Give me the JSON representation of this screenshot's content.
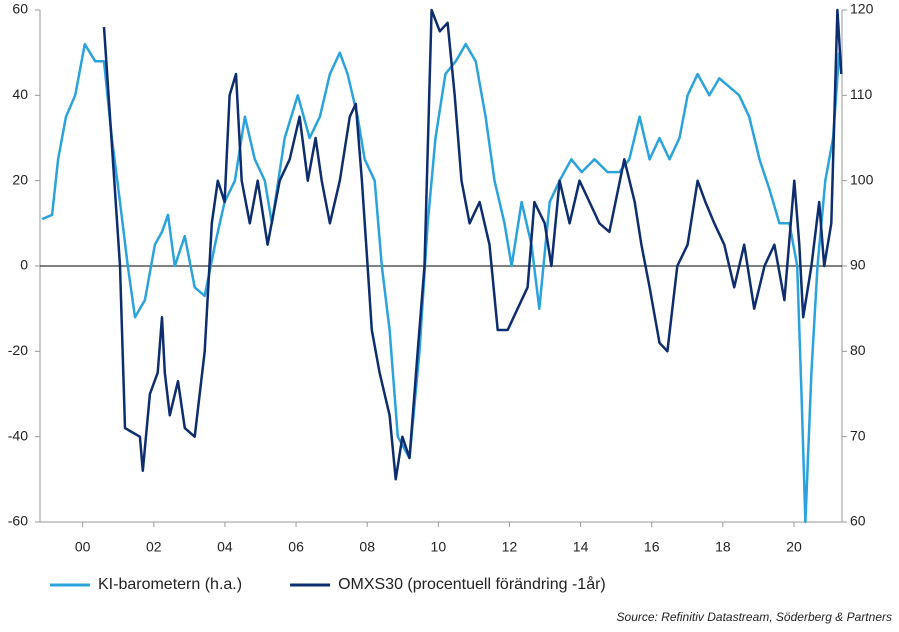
{
  "chart_data": {
    "type": "line",
    "source": "Source: Refinitiv Datastream, Söderberg & Partners",
    "xlim": [
      1998.8,
      2021.35
    ],
    "xticks": [
      {
        "value": 2000,
        "label": "00"
      },
      {
        "value": 2002,
        "label": "02"
      },
      {
        "value": 2004,
        "label": "04"
      },
      {
        "value": 2006,
        "label": "06"
      },
      {
        "value": 2008,
        "label": "08"
      },
      {
        "value": 2010,
        "label": "10"
      },
      {
        "value": 2012,
        "label": "12"
      },
      {
        "value": 2014,
        "label": "14"
      },
      {
        "value": 2016,
        "label": "16"
      },
      {
        "value": 2018,
        "label": "18"
      },
      {
        "value": 2020,
        "label": "20"
      }
    ],
    "ylim": [
      -60,
      60
    ],
    "yticks": [
      -60,
      -40,
      -20,
      0,
      20,
      40,
      60
    ],
    "y2lim": [
      60,
      120
    ],
    "y2ticks": [
      60,
      70,
      80,
      90,
      100,
      110,
      120
    ],
    "series": [
      {
        "name": "KI-barometern (h.a.)",
        "color": "#2aa3dc",
        "axis": "y2",
        "x": [
          1998.86,
          1999.14,
          1999.31,
          1999.53,
          1999.79,
          2000.06,
          2000.35,
          2000.6,
          2000.82,
          2001.05,
          2001.27,
          2001.47,
          2001.75,
          2002.03,
          2002.23,
          2002.4,
          2002.59,
          2002.87,
          2003.15,
          2003.43,
          2003.72,
          2003.99,
          2004.28,
          2004.56,
          2004.84,
          2005.12,
          2005.32,
          2005.68,
          2006.05,
          2006.38,
          2006.67,
          2006.95,
          2007.23,
          2007.45,
          2007.73,
          2007.93,
          2008.21,
          2008.41,
          2008.63,
          2008.86,
          2009.19,
          2009.47,
          2009.7,
          2009.92,
          2010.2,
          2010.49,
          2010.77,
          2011.05,
          2011.33,
          2011.58,
          2011.86,
          2012.06,
          2012.34,
          2012.62,
          2012.84,
          2013.13,
          2013.41,
          2013.74,
          2014.03,
          2014.39,
          2014.76,
          2015.09,
          2015.37,
          2015.66,
          2015.94,
          2016.22,
          2016.5,
          2016.78,
          2017.01,
          2017.29,
          2017.62,
          2017.9,
          2018.18,
          2018.46,
          2018.74,
          2019.03,
          2019.31,
          2019.59,
          2019.87,
          2020.09,
          2020.21,
          2020.32,
          2020.49,
          2020.66,
          2020.88,
          2021.1,
          2021.27
        ],
        "values": [
          95.5,
          96,
          102.5,
          107.5,
          110,
          116,
          114,
          114,
          105,
          97.5,
          90,
          84,
          86,
          92.5,
          94,
          96,
          90,
          93.5,
          87.5,
          86.5,
          92.5,
          97.5,
          100,
          107.5,
          102.5,
          100,
          95,
          105,
          110,
          105,
          107.5,
          112.5,
          115,
          112.5,
          107.5,
          102.5,
          100,
          90,
          82.5,
          70,
          67.5,
          80,
          95,
          105,
          112.5,
          114,
          116,
          114,
          107.5,
          100,
          95,
          90,
          97.5,
          92.5,
          85,
          97.5,
          100,
          102.5,
          101,
          102.5,
          101,
          101,
          102.5,
          107.5,
          102.5,
          105,
          102.5,
          105,
          110,
          112.5,
          110,
          112,
          111,
          110,
          107.5,
          102.5,
          99,
          95,
          95,
          90,
          75,
          60,
          77.5,
          90,
          100,
          105,
          115
        ]
      },
      {
        "name": "OMXS30 (procentuell förändring -1år)",
        "color": "#0d2d6e",
        "x": [
          2000.6,
          2001.05,
          2001.19,
          2001.61,
          2001.69,
          2001.89,
          2002.11,
          2002.23,
          2002.31,
          2002.45,
          2002.68,
          2002.87,
          2003.15,
          2003.43,
          2003.63,
          2003.8,
          2003.99,
          2004.13,
          2004.31,
          2004.47,
          2004.7,
          2004.92,
          2005.2,
          2005.54,
          2005.82,
          2006.1,
          2006.33,
          2006.55,
          2006.72,
          2006.95,
          2007.23,
          2007.51,
          2007.68,
          2007.85,
          2008.01,
          2008.13,
          2008.35,
          2008.63,
          2008.8,
          2008.99,
          2009.19,
          2009.42,
          2009.61,
          2009.81,
          2010.04,
          2010.26,
          2010.46,
          2010.65,
          2010.88,
          2011.16,
          2011.44,
          2011.67,
          2011.95,
          2012.23,
          2012.51,
          2012.7,
          2012.99,
          2013.18,
          2013.41,
          2013.69,
          2013.97,
          2014.25,
          2014.53,
          2014.81,
          2015.23,
          2015.52,
          2015.71,
          2015.94,
          2016.22,
          2016.44,
          2016.72,
          2017.01,
          2017.29,
          2017.51,
          2017.76,
          2018.04,
          2018.32,
          2018.6,
          2018.88,
          2019.17,
          2019.45,
          2019.73,
          2020.01,
          2020.15,
          2020.26,
          2020.49,
          2020.71,
          2020.85,
          2021.05,
          2021.22,
          2021.33
        ],
        "values": [
          56,
          0,
          -38,
          -40,
          -48,
          -30,
          -25,
          -12,
          -25,
          -35,
          -27,
          -38,
          -40,
          -20,
          10,
          20,
          15,
          40,
          45,
          20,
          10,
          20,
          5,
          20,
          25,
          35,
          20,
          30,
          20,
          10,
          20,
          35,
          38,
          20,
          0,
          -15,
          -25,
          -35,
          -50,
          -40,
          -45,
          -20,
          0,
          60,
          55,
          57,
          40,
          20,
          10,
          15,
          5,
          -15,
          -15,
          -10,
          -5,
          15,
          10,
          0,
          20,
          10,
          20,
          15,
          10,
          8,
          25,
          15,
          5,
          -5,
          -18,
          -20,
          0,
          5,
          20,
          15,
          10,
          5,
          -5,
          5,
          -10,
          0,
          5,
          -8,
          20,
          5,
          -12,
          0,
          15,
          0,
          10,
          60,
          45
        ]
      }
    ]
  }
}
